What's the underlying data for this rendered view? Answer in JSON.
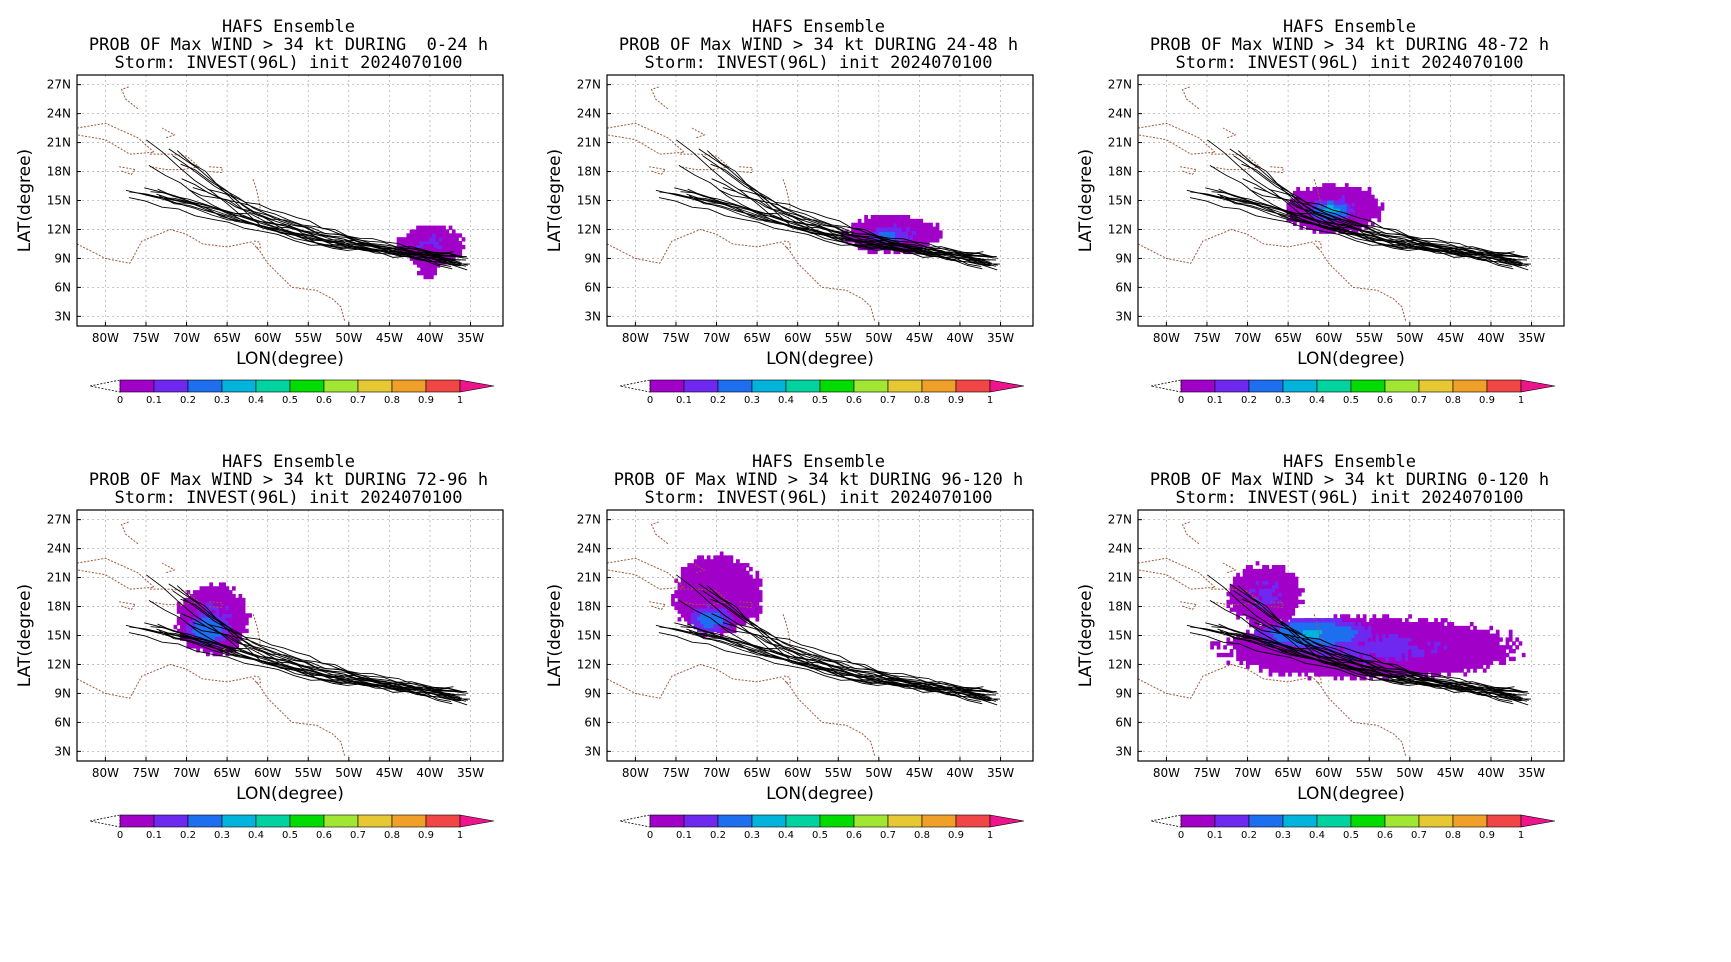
{
  "panels": [
    {
      "title1": "HAFS Ensemble",
      "title2": "PROB OF Max WIND > 34 kt DURING  0-24 h",
      "title3": "Storm: INVEST(96L) init 2024070100",
      "blobs": [
        [
          -40,
          10.2,
          4.5,
          2.2,
          0.1
        ],
        [
          -40.5,
          8.5,
          1.5,
          2,
          0.05
        ]
      ]
    },
    {
      "title1": "HAFS Ensemble",
      "title2": "PROB OF Max WIND > 34 kt DURING 24-48 h",
      "title3": "Storm: INVEST(96L) init 2024070100",
      "blobs": [
        [
          -48.5,
          11.3,
          6.5,
          2.2,
          0.1
        ],
        [
          -49,
          11.2,
          3,
          1,
          0.22
        ]
      ]
    },
    {
      "title1": "HAFS Ensemble",
      "title2": "PROB OF Max WIND > 34 kt DURING 48-72 h",
      "title3": "Storm: INVEST(96L) init 2024070100",
      "blobs": [
        [
          -59.5,
          14,
          6.5,
          2.8,
          0.1
        ],
        [
          -60,
          13.8,
          3,
          1.2,
          0.32
        ]
      ]
    },
    {
      "title1": "HAFS Ensemble",
      "title2": "PROB OF Max WIND > 34 kt DURING 72-96 h",
      "title3": "Storm: INVEST(96L) init 2024070100",
      "blobs": [
        [
          -67,
          16.5,
          5,
          4,
          0.1
        ],
        [
          -67.5,
          15.5,
          3,
          1.8,
          0.28
        ]
      ]
    },
    {
      "title1": "HAFS Ensemble",
      "title2": "PROB OF Max WIND > 34 kt DURING 96-120 h",
      "title3": "Storm: INVEST(96L) init 2024070100",
      "blobs": [
        [
          -70,
          19,
          6,
          4.5,
          0.08
        ],
        [
          -71,
          16.5,
          3,
          1.5,
          0.25
        ]
      ]
    },
    {
      "title1": "HAFS Ensemble",
      "title2": "PROB OF Max WIND > 34 kt DURING 0-120 h",
      "title3": "Storm: INVEST(96L) init 2024070100",
      "blobs": [
        [
          -55,
          13.5,
          20,
          3.5,
          0.1
        ],
        [
          -62,
          15,
          8,
          1.8,
          0.3
        ],
        [
          -68,
          19,
          5,
          3.5,
          0.1
        ]
      ]
    }
  ],
  "axes": {
    "xlabel": "LON(degree)",
    "ylabel": "LAT(degree)",
    "xticks": [
      "80W",
      "75W",
      "70W",
      "65W",
      "60W",
      "55W",
      "50W",
      "45W",
      "40W",
      "35W"
    ],
    "xvals": [
      -80,
      -75,
      -70,
      -65,
      -60,
      -55,
      -50,
      -45,
      -40,
      -35
    ],
    "yticks": [
      "27N",
      "24N",
      "21N",
      "18N",
      "15N",
      "12N",
      "9N",
      "6N",
      "3N"
    ],
    "yvals": [
      27,
      24,
      21,
      18,
      15,
      12,
      9,
      6,
      3
    ],
    "xlim": [
      -83.5,
      -31
    ],
    "ylim": [
      2,
      28
    ]
  },
  "colorbar": {
    "labels": [
      "0",
      "0.1",
      "0.2",
      "0.3",
      "0.4",
      "0.5",
      "0.6",
      "0.7",
      "0.8",
      "0.9",
      "1"
    ],
    "colors": [
      "#a000c8",
      "#6e28f0",
      "#1e6ef0",
      "#00b4dc",
      "#00d2a0",
      "#00dc00",
      "#a0e632",
      "#e6c832",
      "#f0a028",
      "#f04646",
      "#f0148c"
    ]
  }
}
